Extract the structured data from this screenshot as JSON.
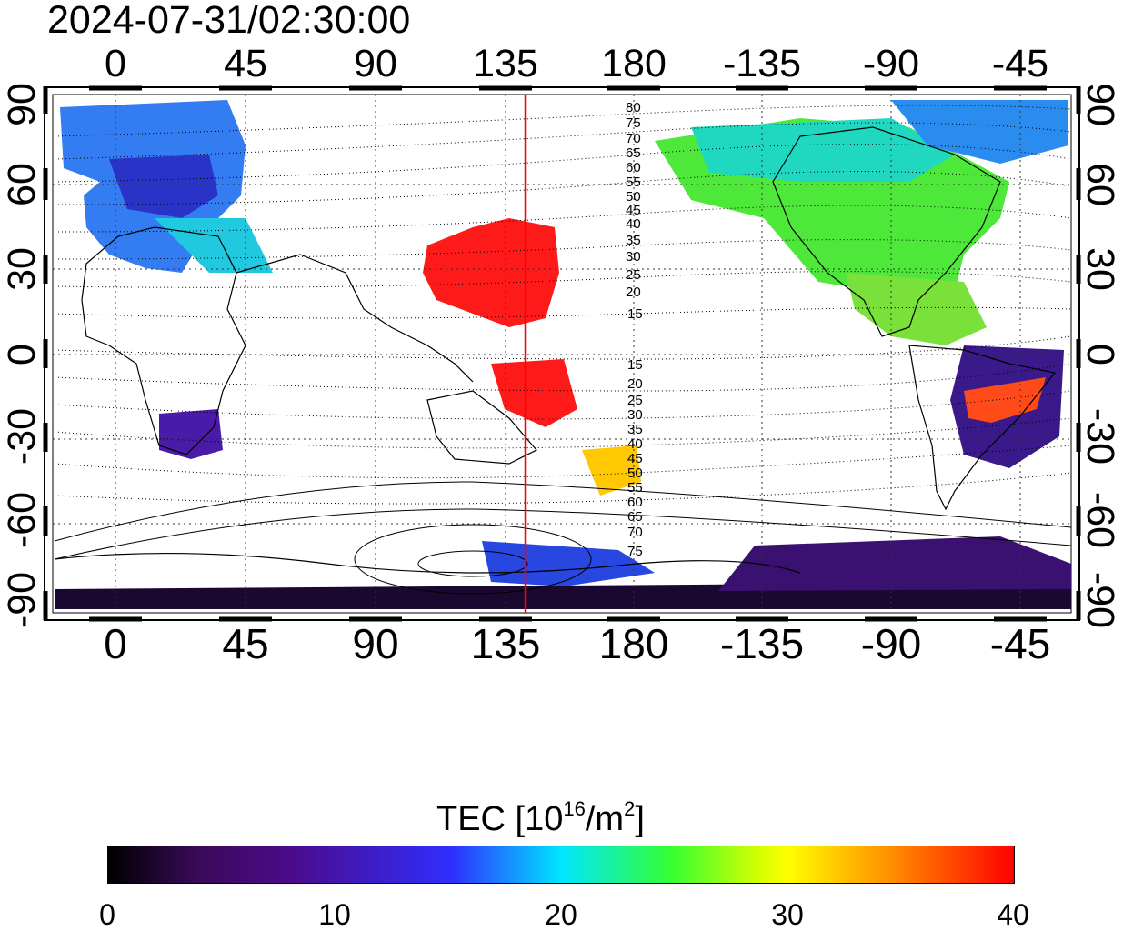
{
  "map": {
    "timestamp": "2024-07-31/02:30:00",
    "lon_ticks": [
      "0",
      "45",
      "90",
      "135",
      "180",
      "-135",
      "-90",
      "-45"
    ],
    "lat_ticks": [
      "90",
      "60",
      "30",
      "0",
      "-30",
      "-60",
      "-90"
    ],
    "contour_labels_north": [
      "80",
      "75",
      "70",
      "65",
      "60",
      "55",
      "50",
      "45",
      "40",
      "35",
      "30",
      "25",
      "20",
      "15"
    ],
    "contour_labels_south": [
      "15",
      "20",
      "25",
      "30",
      "35",
      "40",
      "45",
      "50",
      "55",
      "60",
      "65",
      "70",
      "75"
    ],
    "marker_line_color": "#ff0000"
  },
  "colorbar": {
    "title_prefix": "TEC  [10",
    "title_exp1": "16",
    "title_mid": "/m",
    "title_exp2": "2",
    "title_suffix": "]",
    "ticks": [
      "0",
      "10",
      "20",
      "30",
      "40"
    ]
  }
}
